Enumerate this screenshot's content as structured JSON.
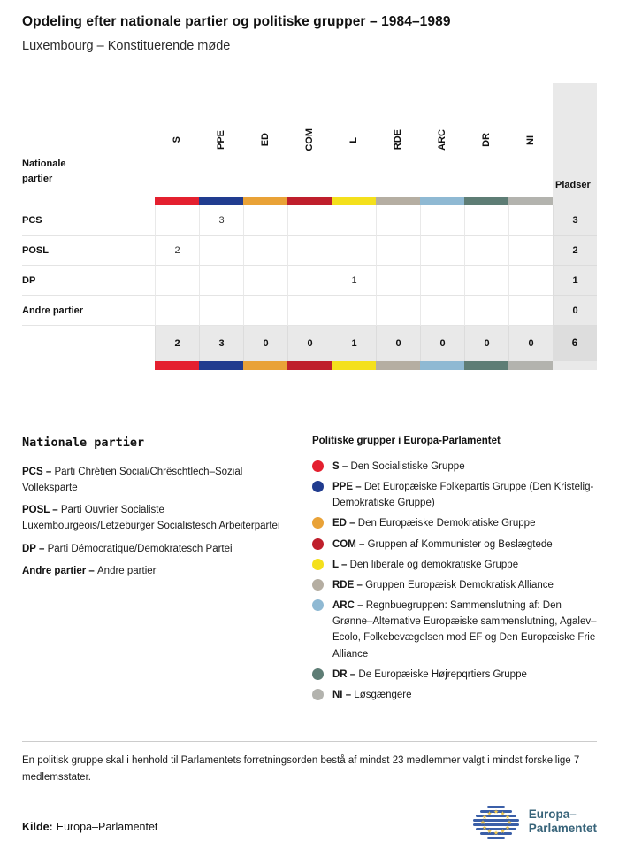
{
  "title": "Opdeling efter nationale partier og politiske grupper – 1984–1989",
  "subtitle": "Luxembourg – Konstituerende møde",
  "table": {
    "row_header_label": "Nationale partier",
    "seats_label": "Pladser",
    "groups": [
      {
        "code": "S",
        "color": "#e4202f"
      },
      {
        "code": "PPE",
        "color": "#213c8f"
      },
      {
        "code": "ED",
        "color": "#e9a237"
      },
      {
        "code": "COM",
        "color": "#bf1f2c"
      },
      {
        "code": "L",
        "color": "#f4e01c"
      },
      {
        "code": "RDE",
        "color": "#b5aea2"
      },
      {
        "code": "ARC",
        "color": "#8fb9d3"
      },
      {
        "code": "DR",
        "color": "#5e7d75"
      },
      {
        "code": "NI",
        "color": "#b3b3ae"
      }
    ],
    "rows": [
      {
        "label": "PCS",
        "values": [
          "",
          "3",
          "",
          "",
          "",
          "",
          "",
          "",
          ""
        ],
        "seats": "3"
      },
      {
        "label": "POSL",
        "values": [
          "2",
          "",
          "",
          "",
          "",
          "",
          "",
          "",
          ""
        ],
        "seats": "2"
      },
      {
        "label": "DP",
        "values": [
          "",
          "",
          "",
          "",
          "1",
          "",
          "",
          "",
          ""
        ],
        "seats": "1"
      },
      {
        "label": "Andre partier",
        "values": [
          "",
          "",
          "",
          "",
          "",
          "",
          "",
          "",
          ""
        ],
        "seats": "0"
      }
    ],
    "totals": {
      "values": [
        "2",
        "3",
        "0",
        "0",
        "1",
        "0",
        "0",
        "0",
        "0"
      ],
      "seats": "6"
    }
  },
  "chart_data": {
    "type": "table",
    "title": "Opdeling efter nationale partier og politiske grupper – 1984–1989",
    "subtitle": "Luxembourg – Konstituerende møde",
    "columns": [
      "S",
      "PPE",
      "ED",
      "COM",
      "L",
      "RDE",
      "ARC",
      "DR",
      "NI",
      "Pladser"
    ],
    "rows": [
      {
        "party": "PCS",
        "seats_by_group": [
          0,
          3,
          0,
          0,
          0,
          0,
          0,
          0,
          0
        ],
        "total": 3
      },
      {
        "party": "POSL",
        "seats_by_group": [
          2,
          0,
          0,
          0,
          0,
          0,
          0,
          0,
          0
        ],
        "total": 2
      },
      {
        "party": "DP",
        "seats_by_group": [
          0,
          0,
          0,
          0,
          1,
          0,
          0,
          0,
          0
        ],
        "total": 1
      },
      {
        "party": "Andre partier",
        "seats_by_group": [
          0,
          0,
          0,
          0,
          0,
          0,
          0,
          0,
          0
        ],
        "total": 0
      }
    ],
    "column_totals": [
      2,
      3,
      0,
      0,
      1,
      0,
      0,
      0,
      0
    ],
    "grand_total": 6
  },
  "legend_national": {
    "heading": "Nationale partier",
    "items": [
      {
        "abbr": "PCS –",
        "text": "Parti Chrétien Social/Chrëschtlech–Sozial Volleksparte"
      },
      {
        "abbr": "POSL –",
        "text": "Parti Ouvrier Socialiste Luxembourgeois/Letzeburger Socialistesch Arbeiterpartei"
      },
      {
        "abbr": "DP –",
        "text": "Parti Démocratique/Demokratesch Partei"
      },
      {
        "abbr": "Andre partier –",
        "text": "Andre partier"
      }
    ]
  },
  "legend_groups": {
    "heading": "Politiske grupper i Europa-Parlamentet",
    "items": [
      {
        "abbr": "S –",
        "color": "#e4202f",
        "text": "Den Socialistiske Gruppe"
      },
      {
        "abbr": "PPE –",
        "color": "#213c8f",
        "text": "Det Europæiske Folkepartis Gruppe (Den Kristelig-Demokratiske Gruppe)"
      },
      {
        "abbr": "ED –",
        "color": "#e9a237",
        "text": "Den Europæiske Demokratiske Gruppe"
      },
      {
        "abbr": "COM –",
        "color": "#bf1f2c",
        "text": "Gruppen af Kommunister og Beslægtede"
      },
      {
        "abbr": "L –",
        "color": "#f4e01c",
        "text": "Den liberale og demokratiske Gruppe"
      },
      {
        "abbr": "RDE –",
        "color": "#b5aea2",
        "text": "Gruppen Europæisk Demokratisk Alliance"
      },
      {
        "abbr": "ARC –",
        "color": "#8fb9d3",
        "text": "Regnbuegruppen: Sammenslutning af: Den Grønne–Alternative Europæiske sammenslutning, Agalev–Ecolo, Folkebevægelsen mod EF og Den Europæiske Frie Alliance"
      },
      {
        "abbr": "DR –",
        "color": "#5e7d75",
        "text": "De Europæiske Højrepqrtiers Gruppe"
      },
      {
        "abbr": "NI –",
        "color": "#b3b3ae",
        "text": "Løsgængere"
      }
    ]
  },
  "footnote": "En politisk gruppe skal i henhold til Parlamentets forretningsorden bestå af mindst 23 medlemmer valgt i mindst forskellige 7 medlemsstater.",
  "source": {
    "label": "Kilde:",
    "text": "Europa–Parlamentet"
  },
  "logo": {
    "line1": "Europa–",
    "line2": "Parlamentet"
  }
}
